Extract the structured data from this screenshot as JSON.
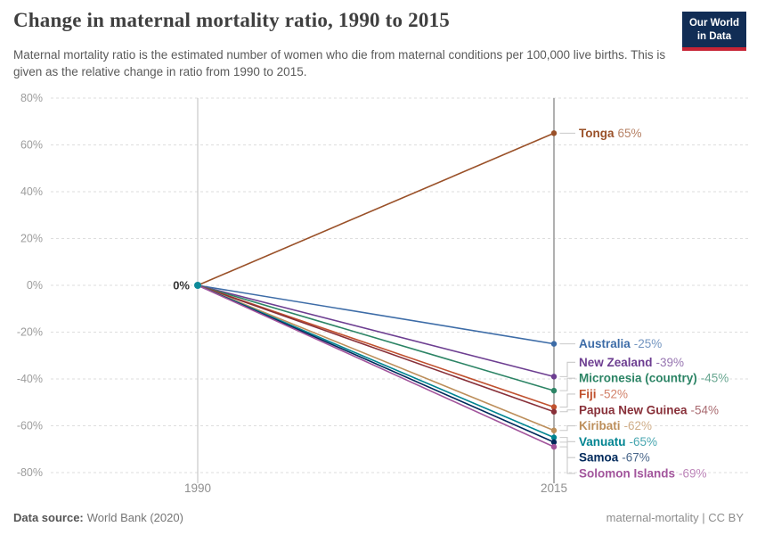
{
  "header": {
    "title": "Change in maternal mortality ratio, 1990 to 2015",
    "subtitle": "Maternal mortality ratio is the estimated number of women who die from maternal conditions per 100,000 live births. This is given as the relative change in ratio from 1990 to 2015.",
    "logo": {
      "line1": "Our World",
      "line2": "in Data",
      "bg_color": "#112D55",
      "accent_color": "#C72435"
    }
  },
  "footer": {
    "source_label": "Data source:",
    "source_value": "World Bank (2020)",
    "license": "maternal-mortality | CC BY"
  },
  "chart_data": {
    "type": "line",
    "subtype": "slope",
    "title": "Change in maternal mortality ratio, 1990 to 2015",
    "x": [
      1990,
      2015
    ],
    "x_labels": [
      "1990",
      "2015"
    ],
    "ylim": [
      -80,
      80
    ],
    "grid": "dashed",
    "legend_position": "right-of-endpoints",
    "origin_label": "0%",
    "yticks": [
      {
        "value": 80,
        "label": "80%"
      },
      {
        "value": 60,
        "label": "60%"
      },
      {
        "value": 40,
        "label": "40%"
      },
      {
        "value": 20,
        "label": "20%"
      },
      {
        "value": 0,
        "label": "0%"
      },
      {
        "value": -20,
        "label": "-20%"
      },
      {
        "value": -40,
        "label": "-40%"
      },
      {
        "value": -60,
        "label": "-60%"
      },
      {
        "value": -80,
        "label": "-80%"
      }
    ],
    "series": [
      {
        "name": "Tonga",
        "values": [
          0,
          65
        ],
        "display": "65%",
        "color": "#9A5129"
      },
      {
        "name": "Australia",
        "values": [
          0,
          -25
        ],
        "display": "-25%",
        "color": "#3D6CA7"
      },
      {
        "name": "New Zealand",
        "values": [
          0,
          -39
        ],
        "display": "-39%",
        "color": "#6D3E91"
      },
      {
        "name": "Micronesia (country)",
        "values": [
          0,
          -45
        ],
        "display": "-45%",
        "color": "#2C8465"
      },
      {
        "name": "Fiji",
        "values": [
          0,
          -52
        ],
        "display": "-52%",
        "color": "#C0512F"
      },
      {
        "name": "Papua New Guinea",
        "values": [
          0,
          -54
        ],
        "display": "-54%",
        "color": "#883039"
      },
      {
        "name": "Kiribati",
        "values": [
          0,
          -62
        ],
        "display": "-62%",
        "color": "#BC8E5A"
      },
      {
        "name": "Vanuatu",
        "values": [
          0,
          -65
        ],
        "display": "-65%",
        "color": "#008491"
      },
      {
        "name": "Samoa",
        "values": [
          0,
          -67
        ],
        "display": "-67%",
        "color": "#00295B"
      },
      {
        "name": "Solomon Islands",
        "values": [
          0,
          -69
        ],
        "display": "-69%",
        "color": "#A2559C"
      }
    ],
    "colors": {
      "origin_dot": "#0E8A99",
      "gridline": "#dedede",
      "axis_line_1990": "#cfcfcf",
      "axis_line_2015": "#a8a8a8",
      "connector": "#c9c9c9"
    }
  }
}
